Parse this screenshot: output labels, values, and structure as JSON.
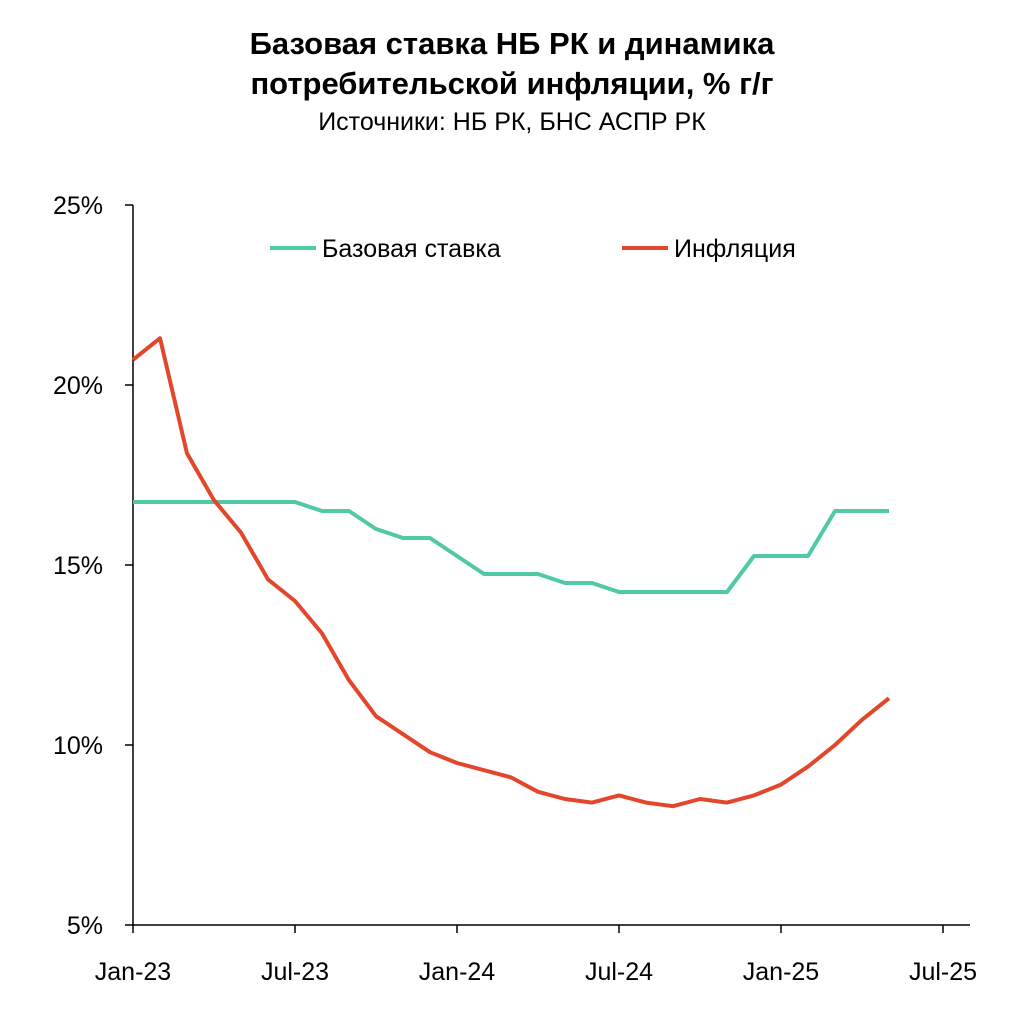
{
  "header": {
    "title_line1": "Базовая ставка НБ РК и динамика",
    "title_line2": "потребительской инфляции, % г/г",
    "subtitle": "Источники: НБ РК, БНС АСПР РК"
  },
  "chart_data": {
    "type": "line",
    "title": "Базовая ставка НБ РК и динамика потребительской инфляции, % г/г",
    "subtitle": "Источники: НБ РК, БНС АСПР РК",
    "xlabel": "",
    "ylabel": "",
    "x": [
      "2023-01",
      "2023-02",
      "2023-03",
      "2023-04",
      "2023-05",
      "2023-06",
      "2023-07",
      "2023-08",
      "2023-09",
      "2023-10",
      "2023-11",
      "2023-12",
      "2024-01",
      "2024-02",
      "2024-03",
      "2024-04",
      "2024-05",
      "2024-06",
      "2024-07",
      "2024-08",
      "2024-09",
      "2024-10",
      "2024-11",
      "2024-12",
      "2025-01",
      "2025-02",
      "2025-03",
      "2025-04",
      "2025-05"
    ],
    "x_tick_labels": [
      "Jan-23",
      "Jul-23",
      "Jan-24",
      "Jul-24",
      "Jan-25",
      "Jul-25"
    ],
    "x_tick_values": [
      "2023-01",
      "2023-07",
      "2024-01",
      "2024-07",
      "2025-01",
      "2025-07"
    ],
    "xlim": [
      "2023-01",
      "2025-07"
    ],
    "y_tick_labels": [
      "5%",
      "10%",
      "15%",
      "20%",
      "25%"
    ],
    "y_tick_values": [
      5,
      10,
      15,
      20,
      25
    ],
    "ylim": [
      5,
      25
    ],
    "grid": false,
    "legend_position": "top",
    "series": [
      {
        "name": "Базовая ставка",
        "color": "#4fc9a6",
        "values": [
          16.75,
          16.75,
          16.75,
          16.75,
          16.75,
          16.75,
          16.75,
          16.5,
          16.5,
          16.0,
          15.75,
          15.75,
          15.25,
          14.75,
          14.75,
          14.75,
          14.5,
          14.5,
          14.25,
          14.25,
          14.25,
          14.25,
          14.25,
          15.25,
          15.25,
          15.25,
          16.5,
          16.5,
          16.5
        ]
      },
      {
        "name": "Инфляция",
        "color": "#e2472c",
        "values": [
          20.7,
          21.3,
          18.1,
          16.8,
          15.9,
          14.6,
          14.0,
          13.1,
          11.8,
          10.8,
          10.3,
          9.8,
          9.5,
          9.3,
          9.1,
          8.7,
          8.5,
          8.4,
          8.6,
          8.4,
          8.3,
          8.5,
          8.4,
          8.6,
          8.9,
          9.4,
          10.0,
          10.7,
          11.3
        ]
      }
    ]
  }
}
